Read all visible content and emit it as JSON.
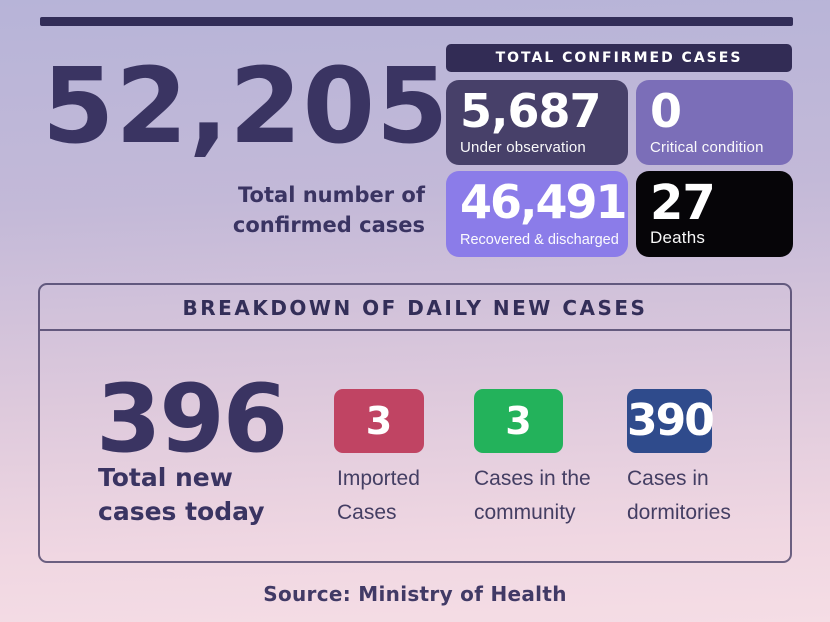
{
  "summary": {
    "total_value": "52,205",
    "caption_line1": "Total number of",
    "caption_line2": "confirmed cases"
  },
  "confirmed_panel": {
    "title": "TOTAL CONFIRMED CASES",
    "title_bg": "#322c55",
    "stats": [
      {
        "value": "5,687",
        "label": "Under observation",
        "bg": "#474069"
      },
      {
        "value": "0",
        "label": "Critical condition",
        "bg": "#7b6eb8"
      },
      {
        "value": "46,491",
        "label": "Recovered & discharged",
        "bg": "#8b7ce9"
      },
      {
        "value": "27",
        "label": "Deaths",
        "bg": "#060508"
      }
    ]
  },
  "breakdown_panel": {
    "title": "BREAKDOWN OF DAILY NEW CASES",
    "total": {
      "value": "396",
      "label_line1": "Total new",
      "label_line2": "cases today"
    },
    "categories": [
      {
        "value": "3",
        "label_line1": "Imported",
        "label_line2": "Cases",
        "bg": "#c04463"
      },
      {
        "value": "3",
        "label_line1": "Cases in the",
        "label_line2": "community",
        "bg": "#23b25b"
      },
      {
        "value": "390",
        "label_line1": "Cases in",
        "label_line2": "dormitories",
        "bg": "#2f4b8c"
      }
    ]
  },
  "footer": {
    "source": "Source: Ministry of Health"
  },
  "colors": {
    "accent_bar": "#322d58",
    "text_dark": "#3a3462",
    "panel_border": "#37315a"
  },
  "chart_data": [
    {
      "type": "table",
      "title": "TOTAL CONFIRMED CASES",
      "total_confirmed_cases": 52205,
      "categories": [
        "Under observation",
        "Critical condition",
        "Recovered & discharged",
        "Deaths"
      ],
      "values": [
        5687,
        0,
        46491,
        27
      ],
      "colors": [
        "#474069",
        "#7b6eb8",
        "#8b7ce9",
        "#060508"
      ]
    },
    {
      "type": "table",
      "title": "BREAKDOWN OF DAILY NEW CASES",
      "total_new_cases_today": 396,
      "categories": [
        "Imported Cases",
        "Cases in the community",
        "Cases in dormitories"
      ],
      "values": [
        3,
        3,
        390
      ],
      "colors": [
        "#c04463",
        "#23b25b",
        "#2f4b8c"
      ]
    }
  ]
}
